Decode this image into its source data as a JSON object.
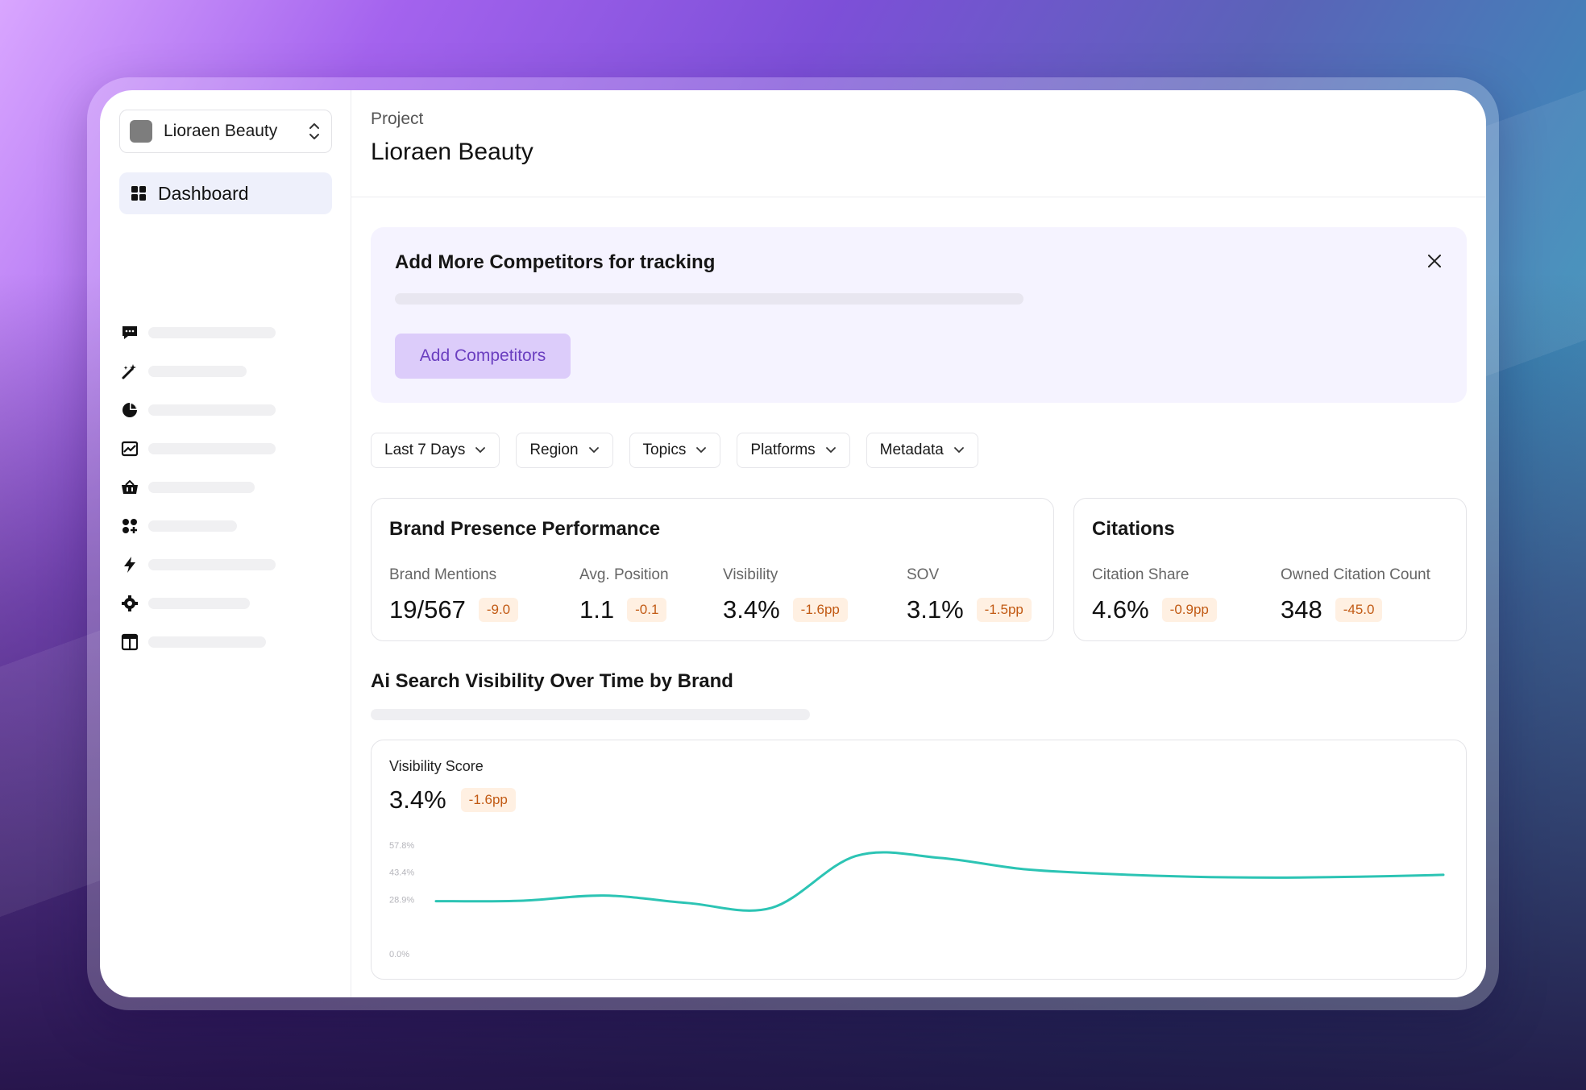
{
  "sidebar": {
    "project_name": "Lioraen Beauty",
    "nav_active_label": "Dashboard",
    "nav_icons": [
      "message-icon",
      "magic-wand-icon",
      "pie-chart-icon",
      "image-chart-icon",
      "basket-icon",
      "apps-icon",
      "bolt-icon",
      "settings-icon",
      "layout-icon"
    ]
  },
  "header": {
    "eyebrow": "Project",
    "title": "Lioraen Beauty"
  },
  "banner": {
    "title": "Add More Competitors for tracking",
    "button_label": "Add Competitors"
  },
  "filters": [
    {
      "label": "Last 7 Days"
    },
    {
      "label": "Region"
    },
    {
      "label": "Topics"
    },
    {
      "label": "Platforms"
    },
    {
      "label": "Metadata"
    }
  ],
  "brand_presence": {
    "title": "Brand Presence Performance",
    "metrics": [
      {
        "label": "Brand Mentions",
        "value": "19/567",
        "delta": "-9.0"
      },
      {
        "label": "Avg. Position",
        "value": "1.1",
        "delta": "-0.1"
      },
      {
        "label": "Visibility",
        "value": "3.4%",
        "delta": "-1.6pp"
      },
      {
        "label": "SOV",
        "value": "3.1%",
        "delta": "-1.5pp"
      }
    ]
  },
  "citations": {
    "title": "Citations",
    "metrics": [
      {
        "label": "Citation Share",
        "value": "4.6%",
        "delta": "-0.9pp"
      },
      {
        "label": "Owned Citation Count",
        "value": "348",
        "delta": "-45.0"
      }
    ]
  },
  "visibility_section": {
    "title": "Ai Search Visibility Over Time by Brand"
  },
  "chart_data": {
    "type": "line",
    "label": "Visibility Score",
    "current_value": "3.4%",
    "current_delta": "-1.6pp",
    "y_ticks": [
      "57.8%",
      "43.4%",
      "28.9%",
      "0.0%"
    ],
    "ylim": [
      0,
      57.8
    ],
    "x": [
      0,
      1,
      2,
      3,
      4,
      5,
      6,
      7,
      8,
      9,
      10,
      11,
      12
    ],
    "series": [
      {
        "color": "#2cc4b4",
        "values": [
          28.0,
          28.2,
          31.0,
          27.0,
          24.5,
          52.0,
          51.0,
          45.0,
          42.5,
          41.0,
          40.5,
          41.0,
          42.0
        ]
      }
    ],
    "grid": false,
    "legend": "none"
  },
  "colors": {
    "accent": "#6b3fc0",
    "line": "#2cc4b4",
    "badge_text": "#c25a14",
    "badge_bg": "#fff0e2"
  }
}
